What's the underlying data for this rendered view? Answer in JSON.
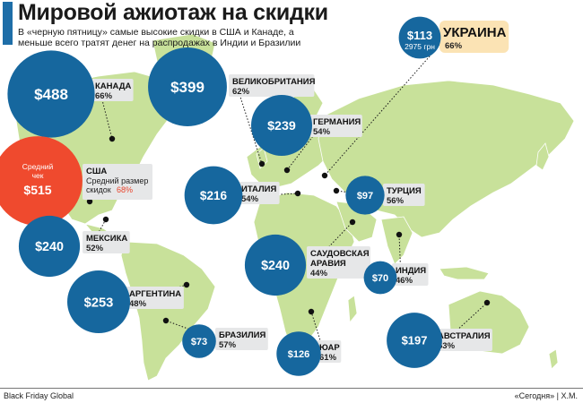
{
  "title": "Мировой ажиотаж на скидки",
  "subtitle": "В «черную пятницу» самые высокие скидки в США и Канаде, а меньше всего тратят денег на распродажах в Индии и Бразилии",
  "source": "Black Friday Global",
  "credit": "«Сегодня» | Х.М.",
  "colors": {
    "bubble": "#16679e",
    "highlight": "#ef4a2e",
    "land": "#c8e19a",
    "ocean": "#ffffff",
    "label_bg": "#e6e7e8",
    "ukraine_bg": "#fbe3b4",
    "discount_red": "#e8432b"
  },
  "chart_data": {
    "type": "bubble-map",
    "units": {
      "check": "$",
      "discount": "%"
    },
    "countries": [
      {
        "name": "КАНАДА",
        "check": "$488",
        "check_value": 488,
        "discount": "66%",
        "discount_value": 66
      },
      {
        "name": "США",
        "check": "$515",
        "check_value": 515,
        "discount": "68%",
        "discount_value": 68,
        "check_note": "Средний чек",
        "discount_note": "Средний размер скидок",
        "highlight": true
      },
      {
        "name": "МЕКСИКА",
        "check": "$240",
        "check_value": 240,
        "discount": "52%",
        "discount_value": 52
      },
      {
        "name": "АРГЕНТИНА",
        "check": "$253",
        "check_value": 253,
        "discount": "48%",
        "discount_value": 48
      },
      {
        "name": "БРАЗИЛИЯ",
        "check": "$73",
        "check_value": 73,
        "discount": "57%",
        "discount_value": 57
      },
      {
        "name": "ВЕЛИКОБРИТАНИЯ",
        "check": "$399",
        "check_value": 399,
        "discount": "62%",
        "discount_value": 62
      },
      {
        "name": "ГЕРМАНИЯ",
        "check": "$239",
        "check_value": 239,
        "discount": "54%",
        "discount_value": 54
      },
      {
        "name": "ИТАЛИЯ",
        "check": "$216",
        "check_value": 216,
        "discount": "54%",
        "discount_value": 54
      },
      {
        "name": "ТУРЦИЯ",
        "check": "$97",
        "check_value": 97,
        "discount": "56%",
        "discount_value": 56
      },
      {
        "name": "САУДОВСКАЯ АРАВИЯ",
        "check": "$240",
        "check_value": 240,
        "discount": "44%",
        "discount_value": 44
      },
      {
        "name": "ИНДИЯ",
        "check": "$70",
        "check_value": 70,
        "discount": "46%",
        "discount_value": 46
      },
      {
        "name": "ЮАР",
        "check": "$126",
        "check_value": 126,
        "discount": "61%",
        "discount_value": 61
      },
      {
        "name": "АВСТРАЛИЯ",
        "check": "$197",
        "check_value": 197,
        "discount": "53%",
        "discount_value": 53
      },
      {
        "name": "УКРАИНА",
        "check": "$113",
        "check_value": 113,
        "discount": "66%",
        "discount_value": 66,
        "local": "2975 грн",
        "highlight_label": true
      }
    ]
  }
}
